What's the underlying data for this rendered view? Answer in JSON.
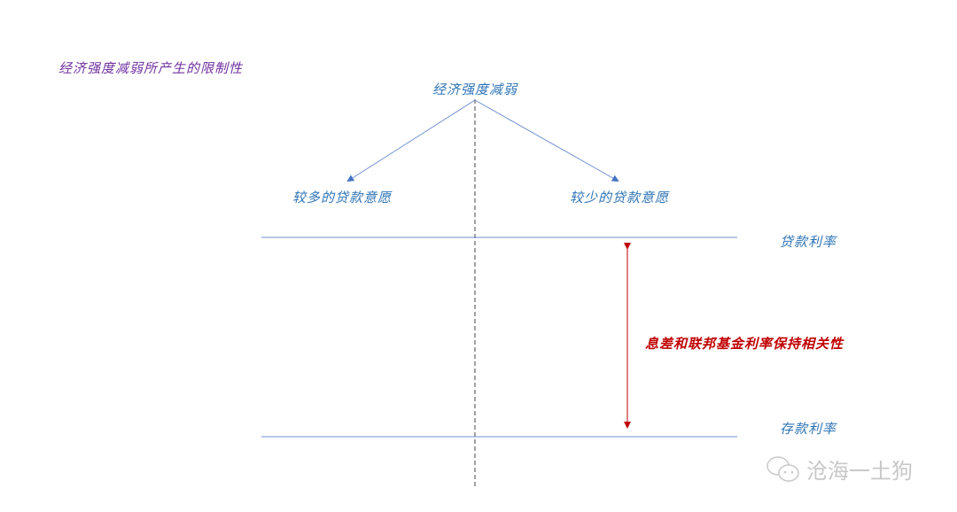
{
  "title": "经济强度减弱所产生的限制性",
  "diagram": {
    "root": "经济强度减弱",
    "left_branch": "较多的贷款意愿",
    "right_branch": "较少的贷款意愿",
    "upper_line_label": "贷款利率",
    "lower_line_label": "存款利率",
    "spread_label": "息差和联邦基金利率保持相关性"
  },
  "watermark": {
    "text": "沧海一土狗",
    "icon": "wechat-icon"
  },
  "colors": {
    "text_blue": "#2e74b5",
    "title_purple": "#7030a0",
    "spread_red": "#c00000",
    "line_blue": "#4472c4"
  }
}
